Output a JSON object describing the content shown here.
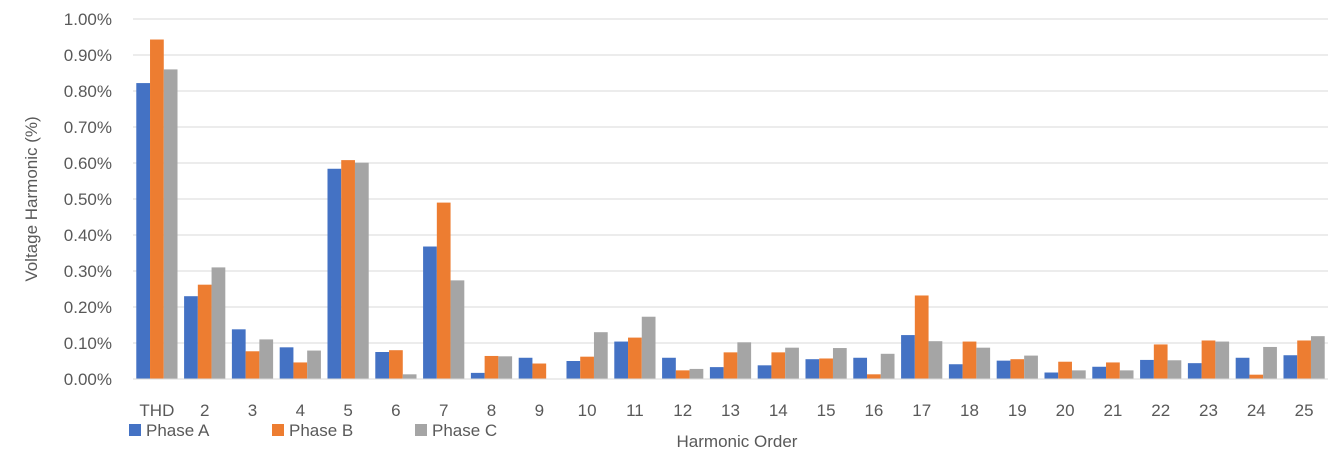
{
  "chart_data": {
    "type": "bar",
    "xlabel": "Harmonic Order",
    "ylabel": "Voltage Harmonic (%)",
    "categories": [
      "THD",
      "2",
      "3",
      "4",
      "5",
      "6",
      "7",
      "8",
      "9",
      "10",
      "11",
      "12",
      "13",
      "14",
      "15",
      "16",
      "17",
      "18",
      "19",
      "20",
      "21",
      "22",
      "23",
      "24",
      "25"
    ],
    "ylim": [
      0,
      1.0
    ],
    "y_ticks": [
      "0.00%",
      "0.10%",
      "0.20%",
      "0.30%",
      "0.40%",
      "0.50%",
      "0.60%",
      "0.70%",
      "0.80%",
      "0.90%",
      "1.00%"
    ],
    "grid": true,
    "legend_position": "bottom-left",
    "series": [
      {
        "name": "Phase A",
        "color": "#4472C4",
        "values": [
          0.822,
          0.23,
          0.138,
          0.088,
          0.584,
          0.075,
          0.368,
          0.017,
          0.059,
          0.05,
          0.104,
          0.059,
          0.033,
          0.038,
          0.055,
          0.059,
          0.122,
          0.041,
          0.051,
          0.018,
          0.034,
          0.053,
          0.044,
          0.059,
          0.066
        ]
      },
      {
        "name": "Phase B",
        "color": "#ED7D31",
        "values": [
          0.943,
          0.262,
          0.077,
          0.046,
          0.608,
          0.08,
          0.49,
          0.064,
          0.043,
          0.062,
          0.115,
          0.024,
          0.074,
          0.074,
          0.057,
          0.013,
          0.232,
          0.104,
          0.055,
          0.048,
          0.046,
          0.096,
          0.107,
          0.012,
          0.107
        ]
      },
      {
        "name": "Phase C",
        "color": "#A5A5A5",
        "values": [
          0.86,
          0.31,
          0.11,
          0.079,
          0.601,
          0.013,
          0.274,
          0.063,
          0.0,
          0.13,
          0.173,
          0.028,
          0.102,
          0.087,
          0.086,
          0.07,
          0.105,
          0.087,
          0.065,
          0.024,
          0.024,
          0.052,
          0.104,
          0.089,
          0.119
        ]
      }
    ]
  }
}
